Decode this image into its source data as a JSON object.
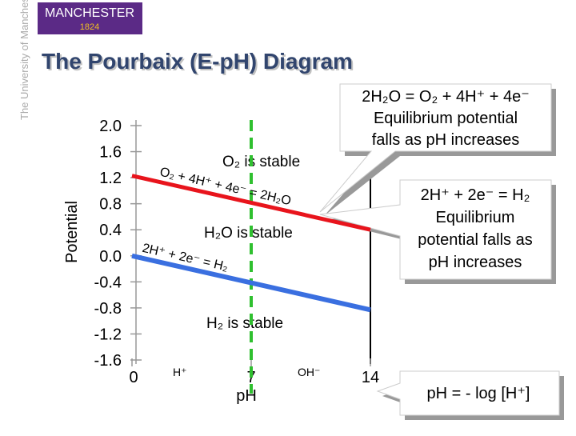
{
  "header": {
    "logo": "MANCHESTER",
    "logo_year": "1824",
    "university": "The University of Manchester"
  },
  "title": "The Pourbaix (E-pH) Diagram",
  "chart_data": {
    "type": "line",
    "ylabel": "Potential",
    "xlabel": "pH",
    "x": [
      0,
      14
    ],
    "series": [
      {
        "name": "O₂ + 4H⁺ + 4e⁻ = 2H₂O",
        "color": "#e8141c",
        "values": [
          1.23,
          0.4
        ]
      },
      {
        "name": "2H⁺ + 2e⁻ = H₂",
        "color": "#3a6fe0",
        "values": [
          0,
          -0.83
        ]
      }
    ],
    "vline": 7,
    "vline_color": "#2fc02f",
    "xlim": [
      0,
      14
    ],
    "xticks": [
      0,
      7,
      14
    ],
    "ylim": [
      -1.6,
      2.0
    ],
    "yticks": [
      {
        "value": 2.0,
        "label": "2.0"
      },
      {
        "value": 1.6,
        "label": "1.6"
      },
      {
        "value": 1.2,
        "label": "1.2"
      },
      {
        "value": 0.8,
        "label": "0.8"
      },
      {
        "value": 0.4,
        "label": "0.4"
      },
      {
        "value": 0.0,
        "label": "0.0"
      },
      {
        "value": -0.4,
        "label": "-0.4"
      },
      {
        "value": -0.8,
        "label": "-0.8"
      },
      {
        "value": -1.2,
        "label": "-1.2"
      },
      {
        "value": -1.6,
        "label": "-1.6"
      }
    ],
    "annotations": {
      "o2_stable": "O₂ is stable",
      "h2o_stable": "H₂O is stable",
      "h2_stable": "H₂ is stable",
      "acid": "H⁺",
      "base": "OH⁻"
    }
  },
  "callouts": [
    {
      "lines": [
        "2H₂O = O₂ + 4H⁺ + 4e⁻",
        "Equilibrium potential",
        "falls as pH increases"
      ]
    },
    {
      "lines": [
        "2H⁺ + 2e⁻ = H₂",
        "Equilibrium",
        "potential falls as",
        "pH increases"
      ]
    },
    {
      "lines": [
        "pH = - log [H⁺]"
      ]
    }
  ]
}
